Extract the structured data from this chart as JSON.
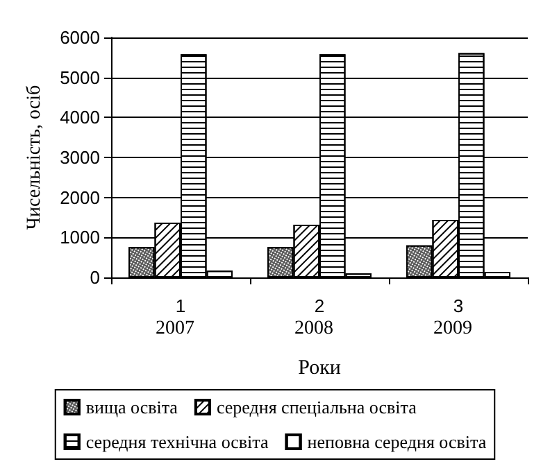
{
  "chart_data": {
    "type": "bar",
    "categories": [
      "1",
      "2",
      "3"
    ],
    "xlabel": "Роки",
    "ylabel": "Чисельність, осіб",
    "annotations": [
      "2007",
      "2008",
      "2009"
    ],
    "series": [
      {
        "name": "вища освіта",
        "color": "#5a5a5a",
        "values": [
          760,
          760,
          800
        ]
      },
      {
        "name": "середня спеціальна освіта",
        "color": "#ffffff",
        "values": [
          1370,
          1320,
          1440
        ]
      },
      {
        "name": "середня технічна освіта",
        "color": "#ffffff",
        "values": [
          5580,
          5580,
          5610
        ]
      },
      {
        "name": "неповна середня освіта",
        "color": "#ffffff",
        "values": [
          170,
          100,
          140
        ]
      }
    ],
    "ylim": [
      0,
      6000
    ],
    "yticks": [
      0,
      1000,
      2000,
      3000,
      4000,
      5000,
      6000
    ],
    "grid": "y",
    "legend": "bottom"
  }
}
